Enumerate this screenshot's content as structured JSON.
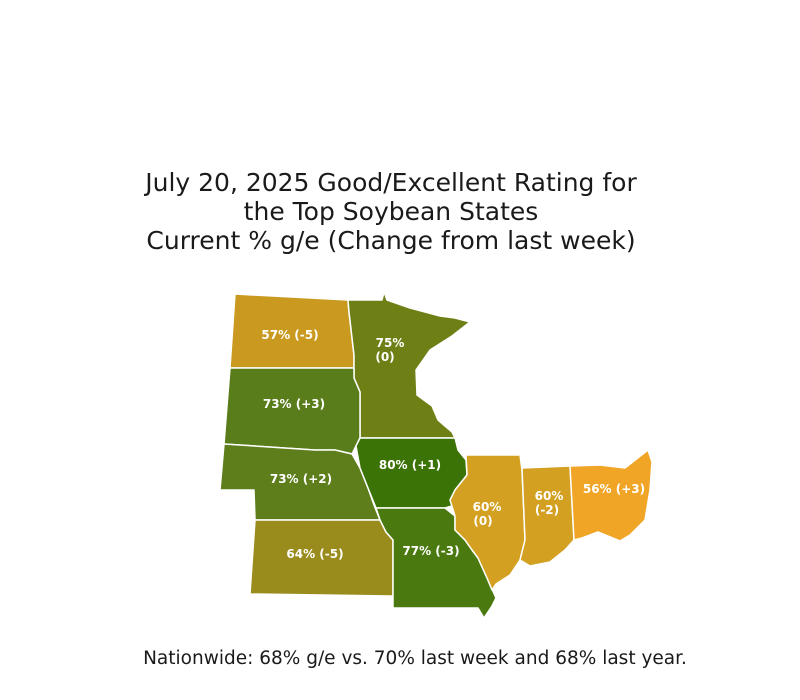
{
  "title": {
    "line1": "July 20, 2025 Good/Excellent Rating for",
    "line2": "the Top Soybean States",
    "line3": "Current % g/e (Change from last week)"
  },
  "states": {
    "north_dakota": {
      "line1": "57% (-5)",
      "color": "#c99a1f"
    },
    "minnesota": {
      "line1": "75%",
      "line2": "(0)",
      "color": "#6e7f15"
    },
    "south_dakota": {
      "line1": "73% (+3)",
      "color": "#5a7d1c"
    },
    "nebraska": {
      "line1": "73% (+2)",
      "color": "#5e7e1c"
    },
    "iowa": {
      "line1": "80% (+1)",
      "color": "#3b7306"
    },
    "kansas": {
      "line1": "64% (-5)",
      "color": "#9a8b1d"
    },
    "missouri": {
      "line1": "77% (-3)",
      "color": "#4a7a0f"
    },
    "illinois": {
      "line1": "60%",
      "line2": "(0)",
      "color": "#d3a022"
    },
    "indiana": {
      "line1": "60%",
      "line2": "(-2)",
      "color": "#d3a022"
    },
    "ohio": {
      "line1": "56% (+3)",
      "color": "#f0a526"
    }
  },
  "footer": "Nationwide: 68% g/e vs. 70% last week and 68% last year."
}
